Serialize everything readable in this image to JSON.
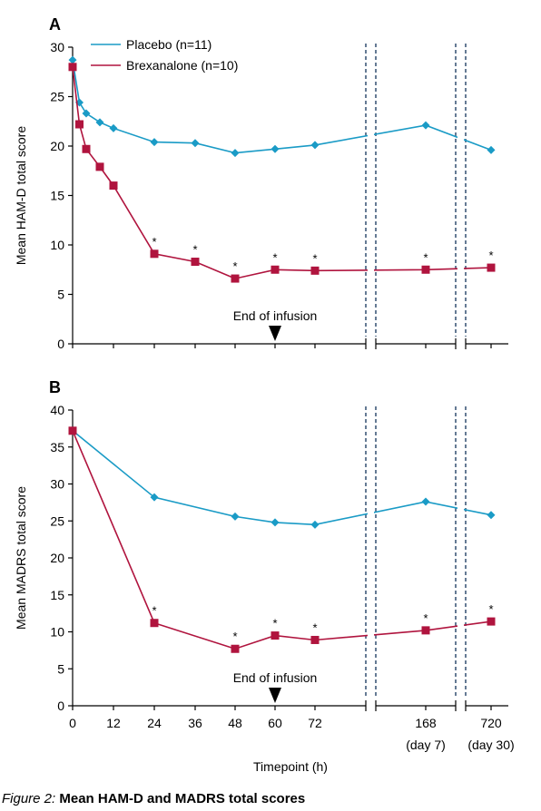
{
  "figure_caption": {
    "lead": "Figure 2:",
    "title": " Mean HAM-D and MADRS total scores"
  },
  "colors": {
    "placebo": "#1a9bc6",
    "brexanolone": "#b0143e",
    "axis": "#000000",
    "break_lines": "#3f5a7a"
  },
  "legend": {
    "placebo": "Placebo (n=11)",
    "brexanolone": "Brexanalone (n=10)"
  },
  "x_axis": {
    "label": "Timepoint (h)",
    "ticks": [
      "0",
      "12",
      "24",
      "36",
      "48",
      "60",
      "72",
      "168",
      "720"
    ],
    "tick_sublabels": {
      "168": "(day 7)",
      "720": "(day 30)"
    }
  },
  "chart_data": [
    {
      "type": "line",
      "panel": "A",
      "ylabel": "Mean HAM-D total score",
      "ylim": [
        0,
        30
      ],
      "yticks": [
        "0",
        "5",
        "10",
        "15",
        "20",
        "25",
        "30"
      ],
      "annotation": "End of infusion",
      "annotation_x": 60,
      "series": [
        {
          "name": "Placebo (n=11)",
          "marker": "diamond",
          "x": [
            0,
            2,
            4,
            8,
            12,
            24,
            36,
            48,
            60,
            72,
            168,
            720
          ],
          "y": [
            28.7,
            24.4,
            23.3,
            22.4,
            21.8,
            20.4,
            20.3,
            19.3,
            19.7,
            20.1,
            22.1,
            19.6
          ]
        },
        {
          "name": "Brexanalone (n=10)",
          "marker": "square",
          "x": [
            0,
            2,
            4,
            8,
            12,
            24,
            36,
            48,
            60,
            72,
            168,
            720
          ],
          "y": [
            28.0,
            22.2,
            19.7,
            17.9,
            16.0,
            9.1,
            8.3,
            6.6,
            7.5,
            7.4,
            7.5,
            7.7
          ]
        }
      ],
      "significance_marks": [
        {
          "x": 24,
          "label": "*"
        },
        {
          "x": 36,
          "label": "*"
        },
        {
          "x": 48,
          "label": "*"
        },
        {
          "x": 60,
          "label": "*"
        },
        {
          "x": 72,
          "label": "*"
        },
        {
          "x": 168,
          "label": "*"
        },
        {
          "x": 720,
          "label": "*"
        }
      ]
    },
    {
      "type": "line",
      "panel": "B",
      "ylabel": "Mean MADRS total score",
      "ylim": [
        0,
        40
      ],
      "yticks": [
        "0",
        "5",
        "10",
        "15",
        "20",
        "25",
        "30",
        "35",
        "40"
      ],
      "annotation": "End of infusion",
      "annotation_x": 60,
      "series": [
        {
          "name": "Placebo (n=11)",
          "marker": "diamond",
          "x": [
            0,
            24,
            48,
            60,
            72,
            168,
            720
          ],
          "y": [
            37.2,
            28.2,
            25.6,
            24.8,
            24.5,
            27.6,
            25.8
          ]
        },
        {
          "name": "Brexanalone (n=10)",
          "marker": "square",
          "x": [
            0,
            24,
            48,
            60,
            72,
            168,
            720
          ],
          "y": [
            37.2,
            11.2,
            7.7,
            9.5,
            8.9,
            10.2,
            11.4
          ]
        }
      ],
      "significance_marks": [
        {
          "x": 24,
          "label": "*"
        },
        {
          "x": 48,
          "label": "*"
        },
        {
          "x": 60,
          "label": "*"
        },
        {
          "x": 72,
          "label": "*"
        },
        {
          "x": 168,
          "label": "*"
        },
        {
          "x": 720,
          "label": "*"
        }
      ]
    }
  ]
}
